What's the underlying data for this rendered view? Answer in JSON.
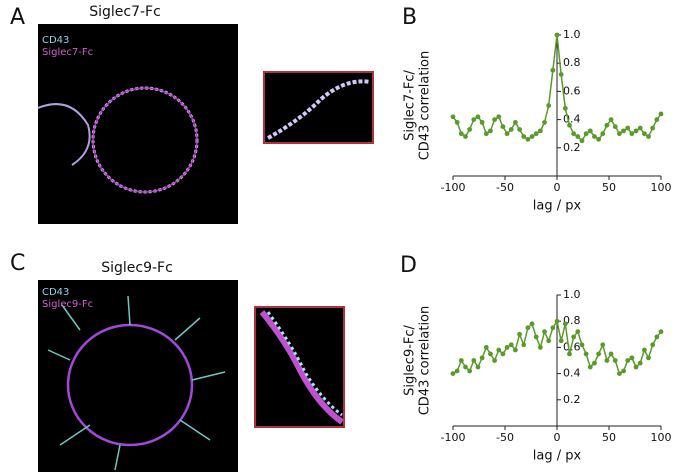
{
  "images": [
    {
      "panel_label": "A",
      "title": "Siglec7-Fc",
      "legend": [
        "CD43",
        "Siglec7-Fc"
      ]
    },
    {
      "panel_label": "C",
      "title": "Siglec9-Fc",
      "legend": [
        "CD43",
        "Siglec9-Fc"
      ]
    }
  ],
  "chart_data": [
    {
      "type": "line",
      "panel_label": "B",
      "xlabel": "lag / px",
      "ylabel": [
        "Siglec7-Fc/",
        "CD43 correlation"
      ],
      "color": "#5a9a2a",
      "x": [
        -100,
        -96,
        -92,
        -88,
        -84,
        -80,
        -76,
        -72,
        -68,
        -64,
        -60,
        -56,
        -52,
        -48,
        -44,
        -40,
        -36,
        -32,
        -28,
        -24,
        -20,
        -16,
        -12,
        -8,
        -4,
        0,
        4,
        8,
        12,
        16,
        20,
        24,
        28,
        32,
        36,
        40,
        44,
        48,
        52,
        56,
        60,
        64,
        68,
        72,
        76,
        80,
        84,
        88,
        92,
        96,
        100
      ],
      "values": [
        0.42,
        0.38,
        0.3,
        0.28,
        0.33,
        0.4,
        0.42,
        0.38,
        0.3,
        0.32,
        0.4,
        0.42,
        0.35,
        0.3,
        0.33,
        0.38,
        0.33,
        0.28,
        0.26,
        0.28,
        0.3,
        0.32,
        0.38,
        0.5,
        0.75,
        1.0,
        0.72,
        0.48,
        0.36,
        0.3,
        0.28,
        0.25,
        0.3,
        0.32,
        0.28,
        0.26,
        0.3,
        0.36,
        0.4,
        0.35,
        0.3,
        0.32,
        0.34,
        0.3,
        0.32,
        0.34,
        0.3,
        0.28,
        0.34,
        0.4,
        0.44
      ],
      "xlim": [
        -100,
        100
      ],
      "xticks": [
        -100,
        -50,
        0,
        50,
        100
      ],
      "ylim": [
        0,
        1
      ],
      "yticks": [
        0.2,
        0.4,
        0.6,
        0.8,
        {
          "value": 1,
          "label": "1.0"
        }
      ]
    },
    {
      "type": "line",
      "panel_label": "D",
      "xlabel": "lag / px",
      "ylabel": [
        "Siglec9-Fc/",
        "CD43 correlation"
      ],
      "color": "#5a9a2a",
      "x": [
        -100,
        -96,
        -92,
        -88,
        -84,
        -80,
        -76,
        -72,
        -68,
        -64,
        -60,
        -56,
        -52,
        -48,
        -44,
        -40,
        -36,
        -32,
        -28,
        -24,
        -20,
        -16,
        -12,
        -8,
        -4,
        0,
        4,
        8,
        12,
        16,
        20,
        24,
        28,
        32,
        36,
        40,
        44,
        48,
        52,
        56,
        60,
        64,
        68,
        72,
        76,
        80,
        84,
        88,
        92,
        96,
        100
      ],
      "values": [
        0.4,
        0.42,
        0.5,
        0.45,
        0.42,
        0.5,
        0.45,
        0.52,
        0.6,
        0.55,
        0.5,
        0.58,
        0.55,
        0.6,
        0.62,
        0.58,
        0.7,
        0.62,
        0.75,
        0.78,
        0.68,
        0.6,
        0.72,
        0.65,
        0.75,
        0.8,
        0.65,
        0.78,
        0.55,
        0.68,
        0.72,
        0.62,
        0.55,
        0.45,
        0.48,
        0.55,
        0.62,
        0.5,
        0.55,
        0.5,
        0.4,
        0.42,
        0.5,
        0.52,
        0.45,
        0.48,
        0.58,
        0.52,
        0.62,
        0.68,
        0.72
      ],
      "xlim": [
        -100,
        100
      ],
      "xticks": [
        -100,
        -50,
        0,
        50,
        100
      ],
      "ylim": [
        0,
        1
      ],
      "yticks": [
        0.2,
        0.4,
        0.6,
        0.8,
        {
          "value": 1,
          "label": "1.0"
        }
      ]
    }
  ]
}
